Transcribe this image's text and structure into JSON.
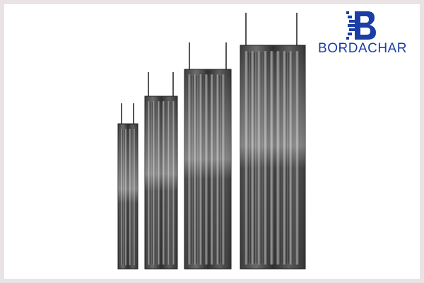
{
  "brand": {
    "name": "BORDACHAR",
    "logo_icon": "stylized-letter-b-logo",
    "accent_color": "#1a3ea6"
  },
  "product": {
    "subject": "immersion-cooling-plates",
    "plate_count": 4,
    "plate_color": "#4a4a4a",
    "background_color": "#ffffff",
    "frame_color": "#e9e3e6"
  }
}
